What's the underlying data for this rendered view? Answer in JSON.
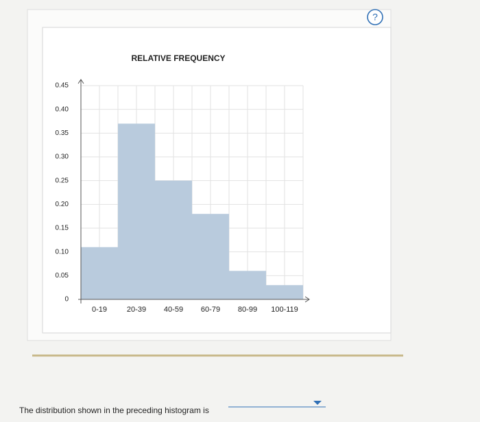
{
  "chart_data": {
    "type": "histogram",
    "title": "RELATIVE FREQUENCY",
    "categories": [
      "0-19",
      "20-39",
      "40-59",
      "60-79",
      "80-99",
      "100-119"
    ],
    "values": [
      0.11,
      0.37,
      0.25,
      0.18,
      0.06,
      0.03
    ],
    "color": "#b9cbdd",
    "ylim": [
      0,
      0.45
    ],
    "yticks": [
      0,
      0.05,
      {
        "value": 0.1,
        "label": "0.10"
      },
      0.15,
      {
        "value": 0.2,
        "label": "0.20"
      },
      0.25,
      {
        "value": 0.3,
        "label": "0.30"
      },
      0.35,
      {
        "value": 0.4,
        "label": "0.40"
      },
      0.45
    ],
    "grid": true
  },
  "help_icon": "?",
  "question": "The distribution shown in the preceding histogram is"
}
